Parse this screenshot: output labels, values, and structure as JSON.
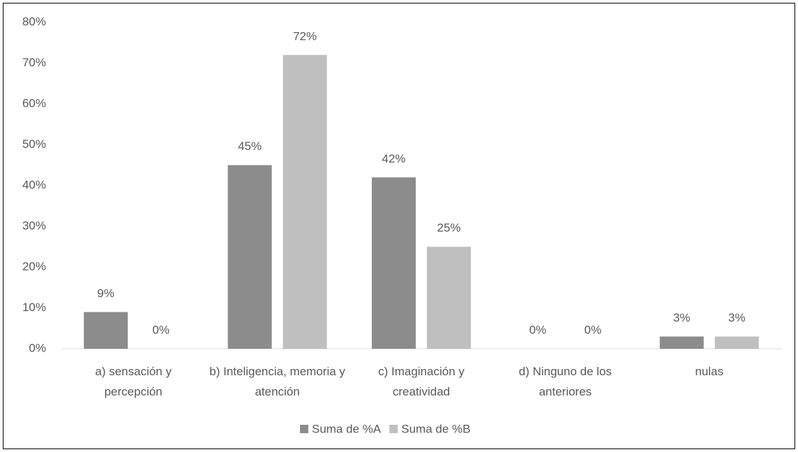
{
  "chart_data": {
    "type": "bar",
    "categories": [
      "a) sensación y percepción",
      "b) Inteligencia, memoria y atención",
      "c) Imaginación y creatividad",
      "d) Ninguno de los anteriores",
      "nulas"
    ],
    "series": [
      {
        "name": "Suma de %A",
        "color": "#8c8c8c",
        "values": [
          9,
          45,
          42,
          0,
          3
        ],
        "value_labels": [
          "9%",
          "45%",
          "42%",
          "0%",
          "3%"
        ]
      },
      {
        "name": "Suma de %B",
        "color": "#bfbfbf",
        "values": [
          0,
          72,
          25,
          0,
          3
        ],
        "value_labels": [
          "0%",
          "72%",
          "25%",
          "0%",
          "3%"
        ]
      }
    ],
    "ylim": [
      0,
      80
    ],
    "yticks": [
      {
        "value": 0,
        "label": "0%"
      },
      {
        "value": 10,
        "label": "10%"
      },
      {
        "value": 20,
        "label": "20%"
      },
      {
        "value": 30,
        "label": "30%"
      },
      {
        "value": 40,
        "label": "40%"
      },
      {
        "value": 50,
        "label": "50%"
      },
      {
        "value": 60,
        "label": "60%"
      },
      {
        "value": 70,
        "label": "70%"
      },
      {
        "value": 80,
        "label": "80%"
      }
    ],
    "grid": false,
    "legend": "bottom"
  }
}
